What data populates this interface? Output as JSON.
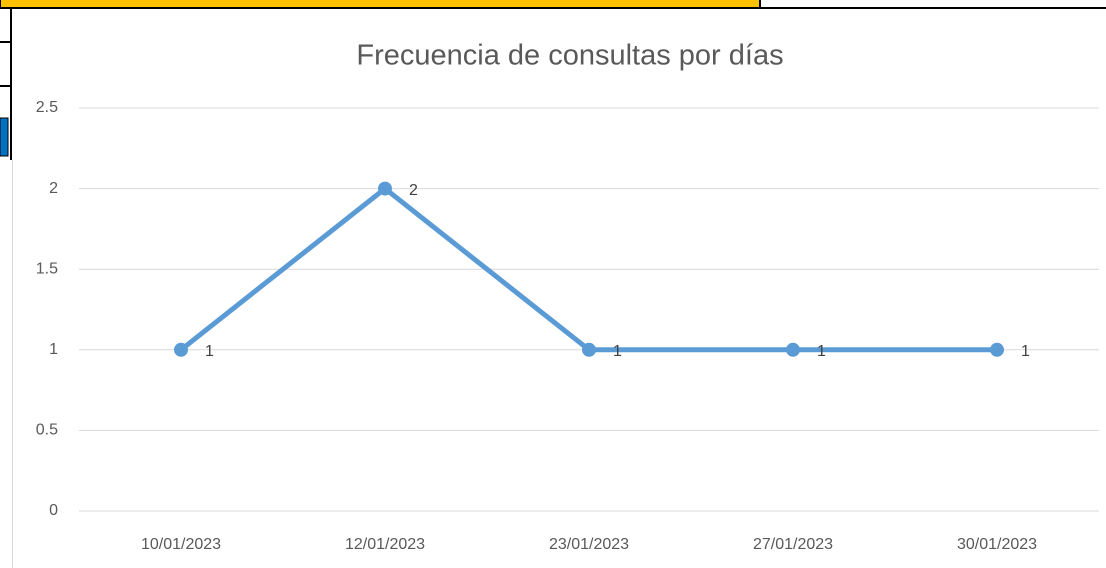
{
  "chart_data": {
    "type": "line",
    "title": "Frecuencia de consultas por días",
    "categories": [
      "10/01/2023",
      "12/01/2023",
      "23/01/2023",
      "27/01/2023",
      "30/01/2023"
    ],
    "values": [
      1,
      2,
      1,
      1,
      1
    ],
    "color": "#5b9bd5",
    "ylim": [
      0,
      2.5
    ],
    "yticks": [
      0,
      0.5,
      1,
      1.5,
      2,
      2.5
    ],
    "grid": true
  }
}
